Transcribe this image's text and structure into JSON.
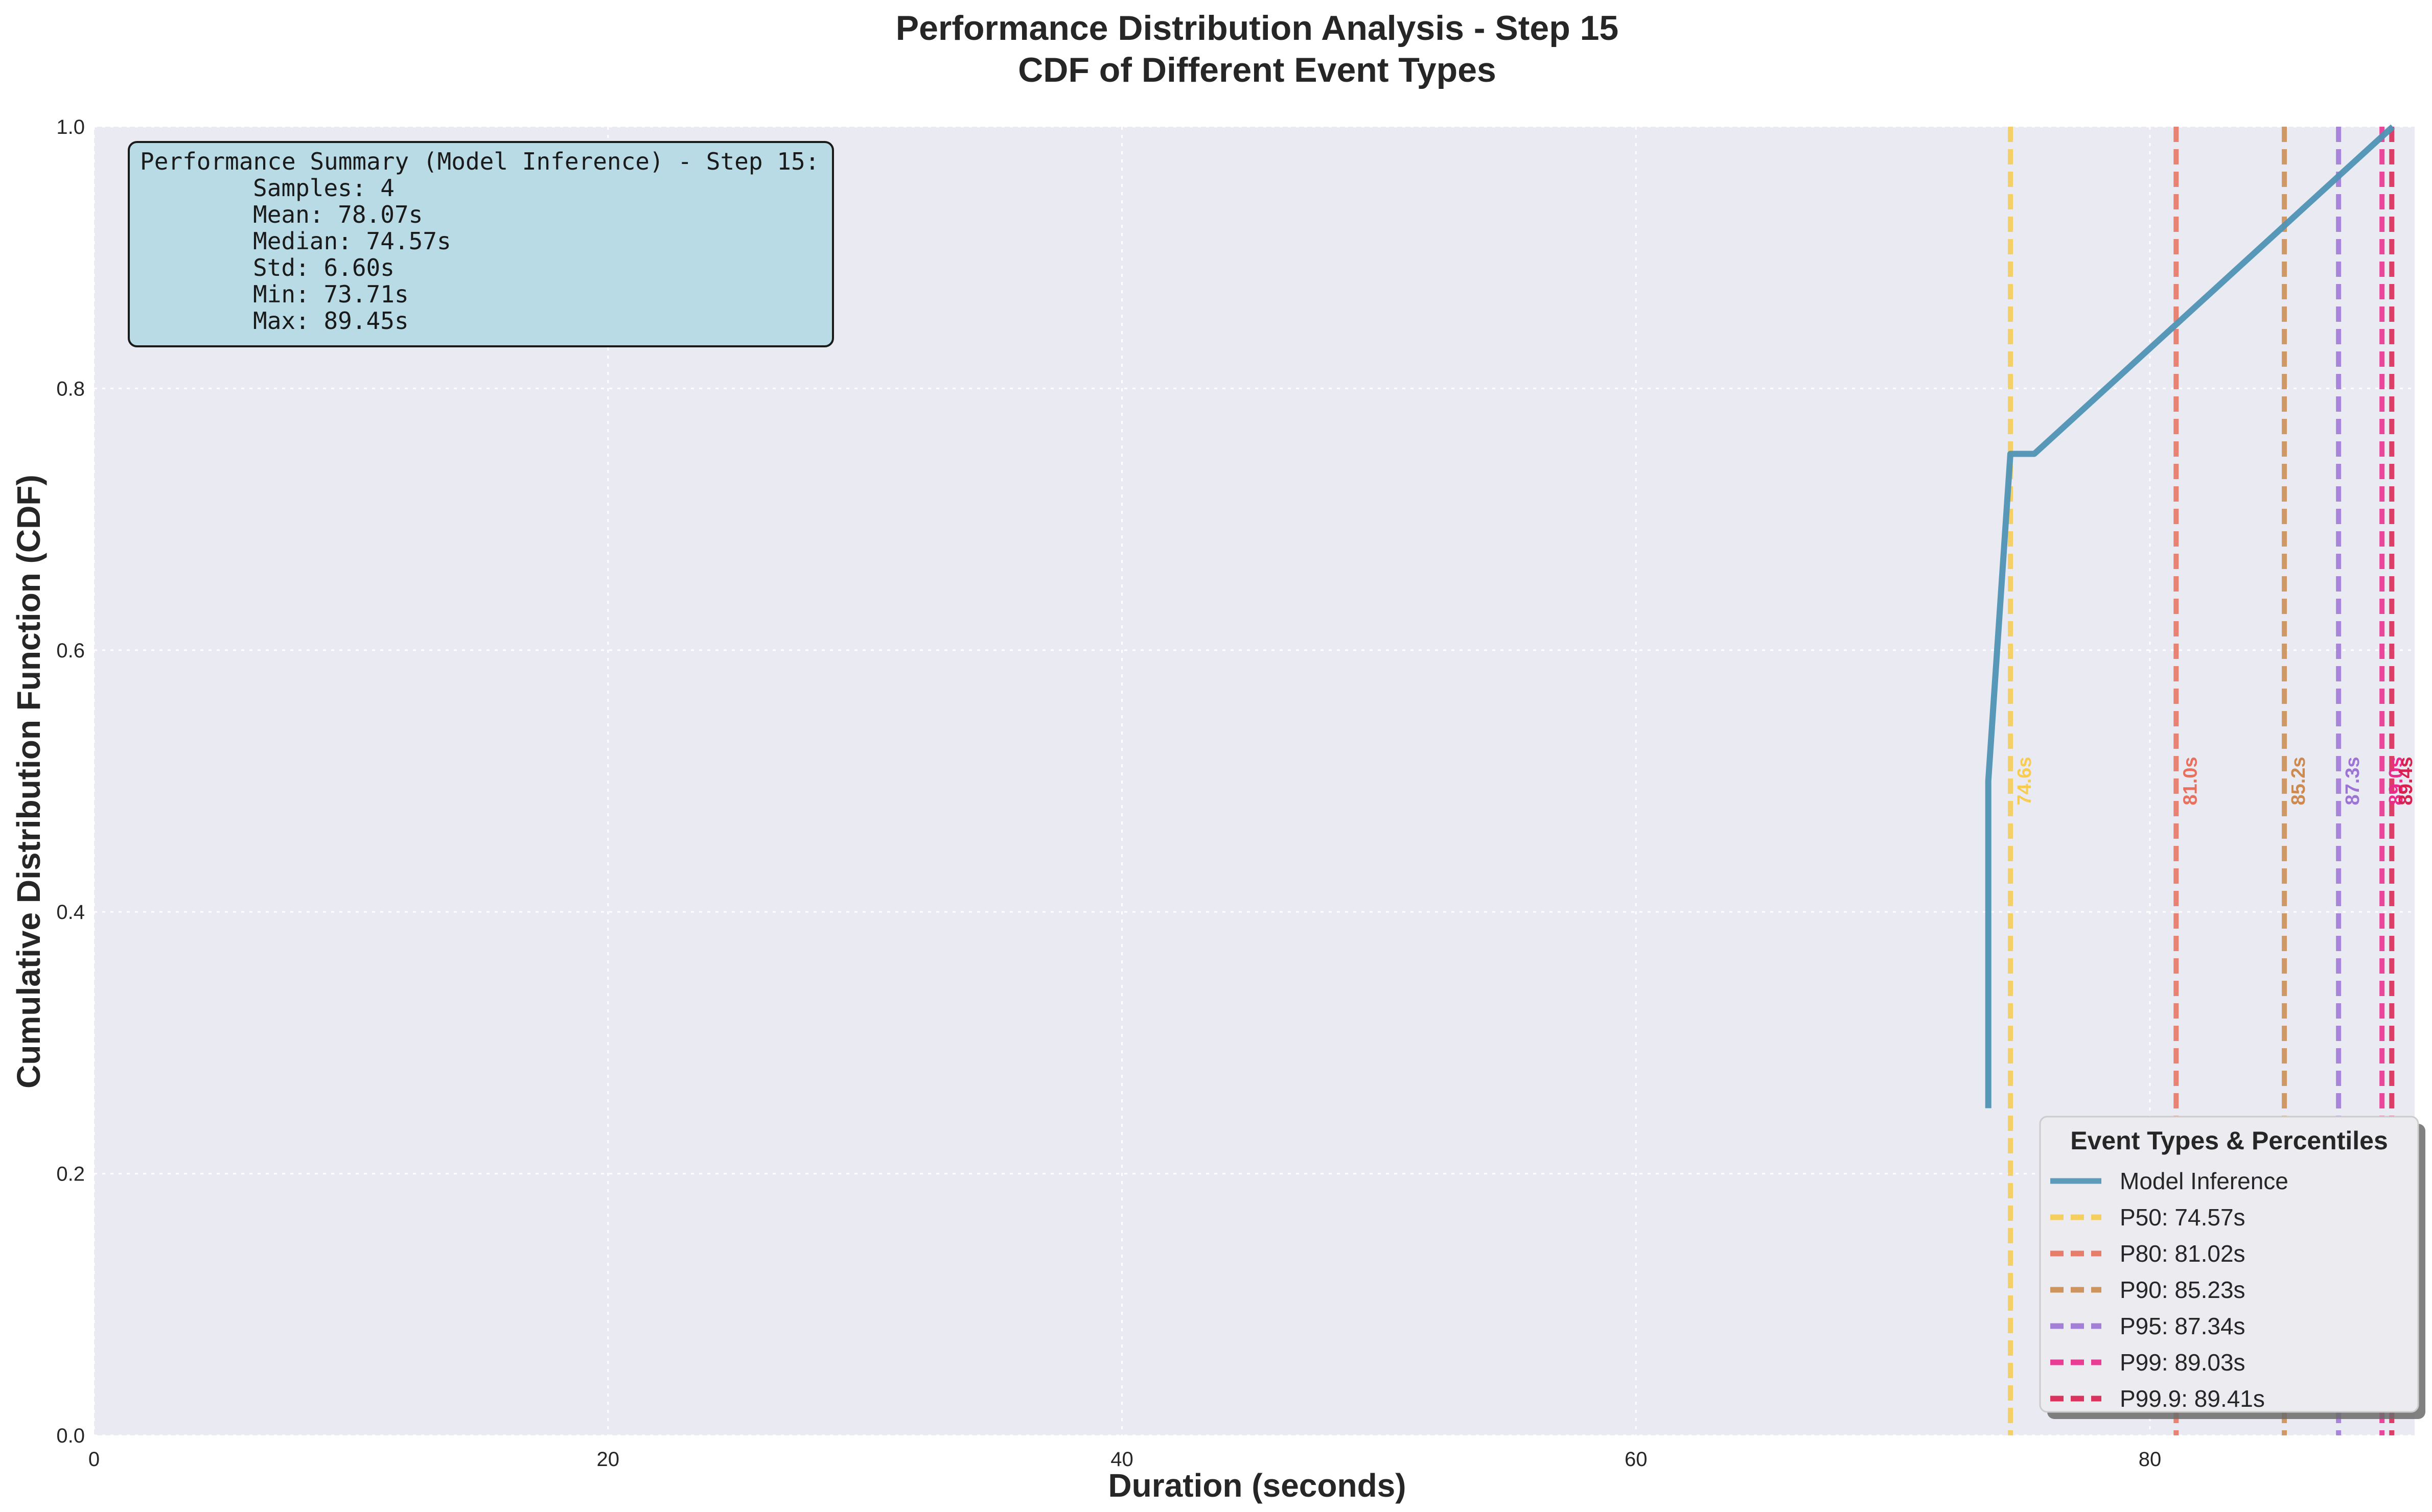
{
  "chart_data": {
    "type": "line",
    "title": "Performance Distribution Analysis - Step 15",
    "subtitle": "CDF of Different Event Types",
    "xlabel": "Duration (seconds)",
    "ylabel": "Cumulative Distribution Function (CDF)",
    "xlim": [
      0,
      90.3
    ],
    "ylim": [
      0,
      1.0
    ],
    "x_ticks": [
      0,
      20,
      40,
      60,
      80
    ],
    "y_ticks": [
      0.0,
      0.2,
      0.4,
      0.6,
      0.8,
      1.0
    ],
    "x_tick_labels": [
      "0",
      "20",
      "40",
      "60",
      "80"
    ],
    "y_tick_labels": [
      "0.0",
      "0.2",
      "0.4",
      "0.6",
      "0.8",
      "1.0"
    ],
    "grid": true,
    "series": [
      {
        "name": "Model Inference",
        "color": "#4f93b5",
        "x": [
          73.71,
          73.71,
          74.57,
          75.5,
          89.45
        ],
        "y": [
          0.25,
          0.5,
          0.75,
          0.75,
          1.0
        ]
      }
    ],
    "percentiles": [
      {
        "name": "P50: 74.57s",
        "value": 74.57,
        "label": "74.6s",
        "color": "#f7cc4f"
      },
      {
        "name": "P80: 81.02s",
        "value": 81.02,
        "label": "81.0s",
        "color": "#e8705c"
      },
      {
        "name": "P90: 85.23s",
        "value": 85.23,
        "label": "85.2s",
        "color": "#cc8a4f"
      },
      {
        "name": "P95: 87.34s",
        "value": 87.34,
        "label": "87.3s",
        "color": "#9d74d6"
      },
      {
        "name": "P99: 89.03s",
        "value": 89.03,
        "label": "89.0s",
        "color": "#eb2a8c"
      },
      {
        "name": "P99.9: 89.41s",
        "value": 89.41,
        "label": "89.4s",
        "color": "#d9214f"
      }
    ],
    "legend": {
      "title": "Event Types & Percentiles",
      "placement": "lower-right"
    },
    "summary_box": {
      "placement": "top-left",
      "lines": [
        "Performance Summary (Model Inference) - Step 15:",
        "Samples: 4",
        "Mean: 78.07s",
        "Median: 74.57s",
        "Std: 6.60s",
        "Min: 73.71s",
        "Max: 89.45s"
      ]
    },
    "colors": {
      "plot_background": "#eaeaf2",
      "grid": "#ffffff",
      "summary_fill": "#b8dbe6"
    }
  }
}
